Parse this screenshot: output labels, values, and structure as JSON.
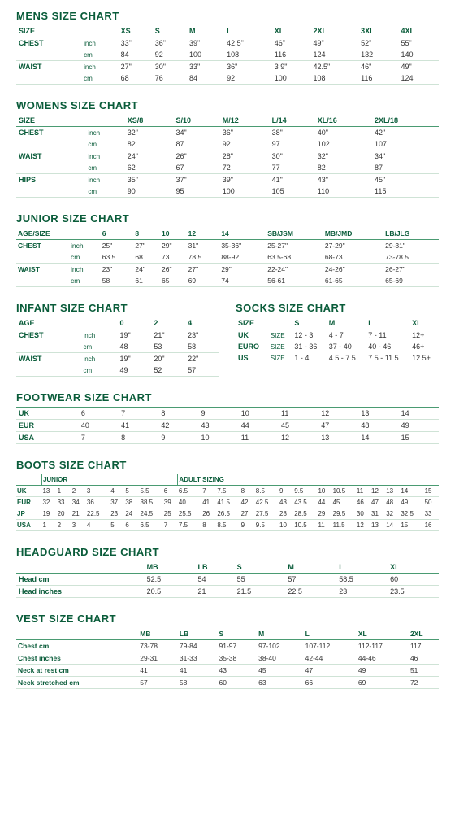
{
  "colors": {
    "brand": "#0a5c3a",
    "divider": "#cfe3d6",
    "headerBorder": "#4a9b72",
    "bg": "#ffffff"
  },
  "mens": {
    "title": "MENS SIZE CHART",
    "headers": [
      "SIZE",
      "XS",
      "S",
      "M",
      "L",
      "XL",
      "2XL",
      "3XL",
      "4XL"
    ],
    "rows": [
      [
        "CHEST",
        "inch",
        "33\"",
        "36\"",
        "39\"",
        "42.5\"",
        "46\"",
        "49\"",
        "52\"",
        "55\""
      ],
      [
        "",
        "cm",
        "84",
        "92",
        "100",
        "108",
        "116",
        "124",
        "132",
        "140"
      ],
      [
        "WAIST",
        "inch",
        "27\"",
        "30\"",
        "33\"",
        "36\"",
        "3 9\"",
        "42.5\"",
        "46\"",
        "49\""
      ],
      [
        "",
        "cm",
        "68",
        "76",
        "84",
        "92",
        "100",
        "108",
        "116",
        "124"
      ]
    ]
  },
  "womens": {
    "title": "WOMENS SIZE CHART",
    "headers": [
      "SIZE",
      "XS/8",
      "S/10",
      "M/12",
      "L/14",
      "XL/16",
      "2XL/18"
    ],
    "rows": [
      [
        "CHEST",
        "inch",
        "32\"",
        "34\"",
        "36\"",
        "38\"",
        "40\"",
        "42\""
      ],
      [
        "",
        "cm",
        "82",
        "87",
        "92",
        "97",
        "102",
        "107"
      ],
      [
        "WAIST",
        "inch",
        "24\"",
        "26\"",
        "28\"",
        "30\"",
        "32\"",
        "34\""
      ],
      [
        "",
        "cm",
        "62",
        "67",
        "72",
        "77",
        "82",
        "87"
      ],
      [
        "HIPS",
        "inch",
        "35\"",
        "37\"",
        "39\"",
        "41\"",
        "43\"",
        "45\""
      ],
      [
        "",
        "cm",
        "90",
        "95",
        "100",
        "105",
        "110",
        "115"
      ]
    ]
  },
  "junior": {
    "title": "JUNIOR SIZE CHART",
    "headers": [
      "AGE/SIZE",
      "6",
      "8",
      "10",
      "12",
      "14",
      "SB/JSM",
      "MB/JMD",
      "LB/JLG"
    ],
    "rows": [
      [
        "CHEST",
        "inch",
        "25\"",
        "27\"",
        "29\"",
        "31\"",
        "35-36\"",
        "25-27\"",
        "27-29\"",
        "29-31\""
      ],
      [
        "",
        "cm",
        "63.5",
        "68",
        "73",
        "78.5",
        "88-92",
        "63.5-68",
        "68-73",
        "73-78.5"
      ],
      [
        "WAIST",
        "inch",
        "23\"",
        "24\"",
        "26\"",
        "27\"",
        "29\"",
        "22-24\"",
        "24-26\"",
        "26-27\""
      ],
      [
        "",
        "cm",
        "58",
        "61",
        "65",
        "69",
        "74",
        "56-61",
        "61-65",
        "65-69"
      ]
    ]
  },
  "infant": {
    "title": "INFANT SIZE CHART",
    "headers": [
      "AGE",
      "0",
      "2",
      "4"
    ],
    "rows": [
      [
        "CHEST",
        "inch",
        "19\"",
        "21\"",
        "23\""
      ],
      [
        "",
        "cm",
        "48",
        "53",
        "58"
      ],
      [
        "WAIST",
        "inch",
        "19\"",
        "20\"",
        "22\""
      ],
      [
        "",
        "cm",
        "49",
        "52",
        "57"
      ]
    ]
  },
  "socks": {
    "title": "SOCKS SIZE CHART",
    "headers": [
      "SIZE",
      "",
      "S",
      "M",
      "L",
      "XL"
    ],
    "rows": [
      [
        "UK",
        "SIZE",
        "12 - 3",
        "4 - 7",
        "7 - 11",
        "12+"
      ],
      [
        "EURO",
        "SIZE",
        "31 - 36",
        "37 - 40",
        "40 - 46",
        "46+"
      ],
      [
        "US",
        "SIZE",
        "1 - 4",
        "4.5 - 7.5",
        "7.5 - 11.5",
        "12.5+"
      ]
    ]
  },
  "footwear": {
    "title": "FOOTWEAR SIZE CHART",
    "headers": [
      "",
      "",
      "",
      "",
      "",
      "",
      "",
      "",
      "",
      ""
    ],
    "rows": [
      [
        "UK",
        "6",
        "7",
        "8",
        "9",
        "10",
        "11",
        "12",
        "13",
        "14"
      ],
      [
        "EUR",
        "40",
        "41",
        "42",
        "43",
        "44",
        "45",
        "47",
        "48",
        "49"
      ],
      [
        "USA",
        "7",
        "8",
        "9",
        "10",
        "11",
        "12",
        "13",
        "14",
        "15"
      ]
    ]
  },
  "boots": {
    "title": "BOOTS SIZE CHART",
    "sectionA": "JUNIOR",
    "sectionB": "ADULT SIZING",
    "rows": [
      [
        "UK",
        "13",
        "1",
        "2",
        "3",
        "4",
        "5",
        "5.5",
        "6",
        "6.5",
        "7",
        "7.5",
        "8",
        "8.5",
        "9",
        "9.5",
        "10",
        "10.5",
        "11",
        "12",
        "13",
        "14",
        "15"
      ],
      [
        "EUR",
        "32",
        "33",
        "34",
        "36",
        "37",
        "38",
        "38.5",
        "39",
        "40",
        "41",
        "41.5",
        "42",
        "42.5",
        "43",
        "43.5",
        "44",
        "45",
        "46",
        "47",
        "48",
        "49",
        "50"
      ],
      [
        "JP",
        "19",
        "20",
        "21",
        "22.5",
        "23",
        "24",
        "24.5",
        "25",
        "25.5",
        "26",
        "26.5",
        "27",
        "27.5",
        "28",
        "28.5",
        "29",
        "29.5",
        "30",
        "31",
        "32",
        "32.5",
        "33"
      ],
      [
        "USA",
        "1",
        "2",
        "3",
        "4",
        "5",
        "6",
        "6.5",
        "7",
        "7.5",
        "8",
        "8.5",
        "9",
        "9.5",
        "10",
        "10.5",
        "11",
        "11.5",
        "12",
        "13",
        "14",
        "15",
        "16"
      ]
    ]
  },
  "headguard": {
    "title": "HEADGUARD SIZE CHART",
    "headers": [
      "",
      "MB",
      "LB",
      "S",
      "M",
      "L",
      "XL"
    ],
    "rows": [
      [
        "Head cm",
        "52.5",
        "54",
        "55",
        "57",
        "58.5",
        "60"
      ],
      [
        "Head inches",
        "20.5",
        "21",
        "21.5",
        "22.5",
        "23",
        "23.5"
      ]
    ]
  },
  "vest": {
    "title": "VEST SIZE CHART",
    "headers": [
      "",
      "MB",
      "LB",
      "S",
      "M",
      "L",
      "XL",
      "2XL"
    ],
    "rows": [
      [
        "Chest cm",
        "73-78",
        "79-84",
        "91-97",
        "97-102",
        "107-112",
        "112-117",
        "117"
      ],
      [
        "Chest inches",
        "29-31",
        "31-33",
        "35-38",
        "38-40",
        "42-44",
        "44-46",
        "46"
      ],
      [
        "Neck at rest cm",
        "41",
        "41",
        "43",
        "45",
        "47",
        "49",
        "51"
      ],
      [
        "Neck stretched cm",
        "57",
        "58",
        "60",
        "63",
        "66",
        "69",
        "72"
      ]
    ]
  }
}
